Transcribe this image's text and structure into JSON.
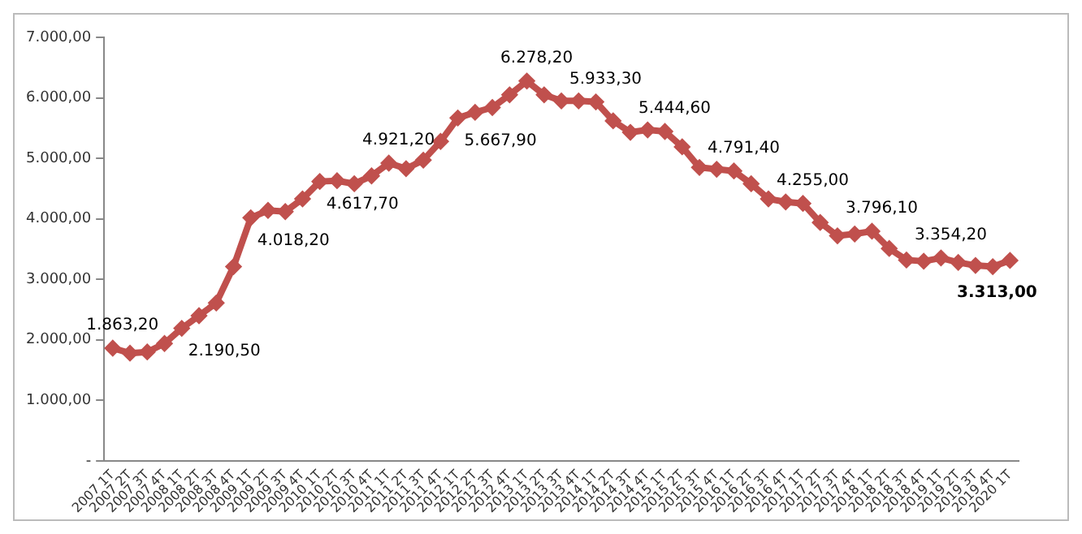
{
  "chart_data": {
    "type": "line",
    "categories": [
      "2007 1T",
      "2007 2T",
      "2007 3T",
      "2007 4T",
      "2008 1T",
      "2008 2T",
      "2008 3T",
      "2008 4T",
      "2009 1T",
      "2009 2T",
      "2009 3T",
      "2009 4T",
      "2010 1T",
      "2010 2T",
      "2010 3T",
      "2010 4T",
      "2011 1T",
      "2011 2T",
      "2011 3T",
      "2011 4T",
      "2012 1T",
      "2012 2T",
      "2012 3T",
      "2012 4T",
      "2013 1T",
      "2013 2T",
      "2013 3T",
      "2013 4T",
      "2014 1T",
      "2014 2T",
      "2014 3T",
      "2014 4T",
      "2015 1T",
      "2015 2T",
      "2015 3T",
      "2015 4T",
      "2016 1T",
      "2016 2T",
      "2016 3T",
      "2016 4T",
      "2017 1T",
      "2017 2T",
      "2017 3T",
      "2017 4T",
      "2018 1T",
      "2018 2T",
      "2018 3T",
      "2018 4T",
      "2019 1T",
      "2019 2T",
      "2019 3T",
      "2019 4T",
      "2020 1T"
    ],
    "series": [
      {
        "color": "#c0504d",
        "values": [
          1863.2,
          1780,
          1800,
          1940,
          2190.5,
          2400,
          2610,
          3210,
          4018.2,
          4140,
          4120,
          4330,
          4617.7,
          4630,
          4580,
          4710,
          4921.2,
          4830,
          4970,
          5280,
          5667.9,
          5760,
          5840,
          6050,
          6278.2,
          6050,
          5950,
          5950,
          5933.3,
          5620,
          5430,
          5470,
          5444.6,
          5190,
          4850,
          4820,
          4791.4,
          4580,
          4330,
          4280,
          4255,
          3940,
          3720,
          3750,
          3796.1,
          3510,
          3320,
          3300,
          3354.2,
          3280,
          3230,
          3210,
          3313
        ],
        "value_labels": [
          "1.863,20",
          null,
          null,
          null,
          "2.190,50",
          null,
          null,
          null,
          "4.018,20",
          null,
          null,
          null,
          "4.617,70",
          null,
          null,
          null,
          "4.921,20",
          null,
          null,
          null,
          "5.667,90",
          null,
          null,
          null,
          "6.278,20",
          null,
          null,
          null,
          "5.933,30",
          null,
          null,
          null,
          "5.444,60",
          null,
          null,
          null,
          "4.791,40",
          null,
          null,
          null,
          "4.255,00",
          null,
          null,
          null,
          "3.796,10",
          null,
          null,
          null,
          "3.354,20",
          null,
          null,
          null,
          "3.313,00"
        ]
      }
    ],
    "ylim": [
      0,
      7000
    ],
    "yticks": [
      {
        "value": 0,
        "label": "-"
      },
      {
        "value": 1000,
        "label": "1.000,00"
      },
      {
        "value": 2000,
        "label": "2.000,00"
      },
      {
        "value": 3000,
        "label": "3.000,00"
      },
      {
        "value": 4000,
        "label": "4.000,00"
      },
      {
        "value": 5000,
        "label": "5.000,00"
      },
      {
        "value": 6000,
        "label": "6.000,00"
      },
      {
        "value": 7000,
        "label": "7.000,00"
      }
    ],
    "grid": false,
    "legend": false,
    "marker": "diamond",
    "line_style": "solid"
  }
}
